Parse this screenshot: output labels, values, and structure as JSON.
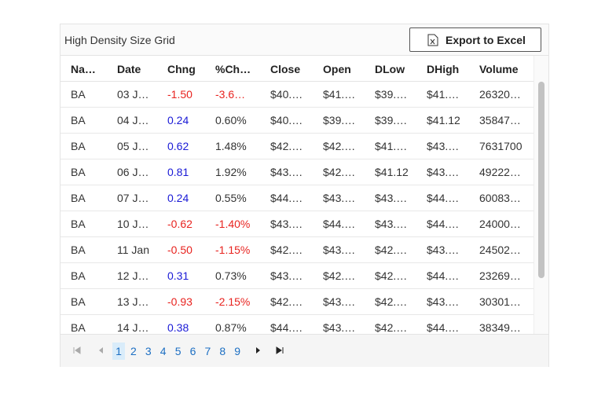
{
  "header": {
    "title": "High Density Size Grid",
    "export_button": "Export to Excel"
  },
  "table": {
    "columns": [
      "Na…",
      "Date",
      "Chng",
      "%Ch…",
      "Close",
      "Open",
      "DLow",
      "DHigh",
      "Volume"
    ],
    "rows": [
      [
        "BA",
        "03 J…",
        "-1.50",
        "-3.6…",
        "$40.…",
        "$41.…",
        "$39.…",
        "$41.…",
        "26320…"
      ],
      [
        "BA",
        "04 J…",
        "0.24",
        "0.60%",
        "$40.…",
        "$39.…",
        "$39.…",
        "$41.12",
        "35847…"
      ],
      [
        "BA",
        "05 J…",
        "0.62",
        "1.48%",
        "$42.…",
        "$42.…",
        "$41.…",
        "$43.…",
        "7631700"
      ],
      [
        "BA",
        "06 J…",
        "0.81",
        "1.92%",
        "$43.…",
        "$42.…",
        "$41.12",
        "$43.…",
        "49222…"
      ],
      [
        "BA",
        "07 J…",
        "0.24",
        "0.55%",
        "$44.…",
        "$43.…",
        "$43.…",
        "$44.…",
        "60083…"
      ],
      [
        "BA",
        "10 J…",
        "-0.62",
        "-1.40%",
        "$43.…",
        "$44.…",
        "$43.…",
        "$44.…",
        "24000…"
      ],
      [
        "BA",
        "11 Jan",
        "-0.50",
        "-1.15%",
        "$42.…",
        "$43.…",
        "$42.…",
        "$43.…",
        "24502…"
      ],
      [
        "BA",
        "12 J…",
        "0.31",
        "0.73%",
        "$43.…",
        "$42.…",
        "$42.…",
        "$44.…",
        "23269…"
      ],
      [
        "BA",
        "13 J…",
        "-0.93",
        "-2.15%",
        "$42.…",
        "$43.…",
        "$42.…",
        "$43.…",
        "30301…"
      ],
      [
        "BA",
        "14 J…",
        "0.38",
        "0.87%",
        "$44.…",
        "$43.…",
        "$42.…",
        "$44.…",
        "38349…"
      ]
    ]
  },
  "pager": {
    "pages": [
      "1",
      "2",
      "3",
      "4",
      "5",
      "6",
      "7",
      "8",
      "9"
    ],
    "current": 0
  }
}
